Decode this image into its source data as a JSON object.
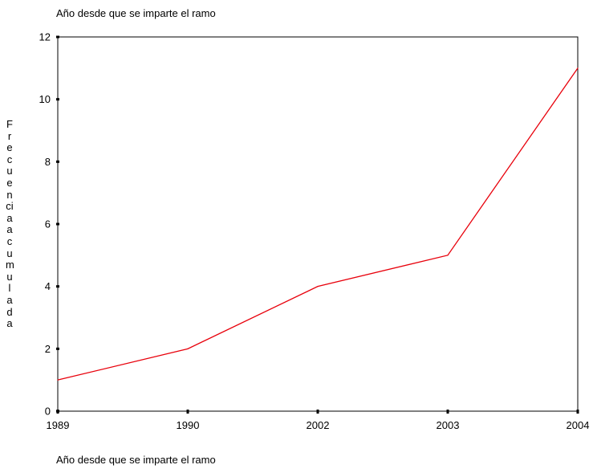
{
  "chart_data": {
    "type": "line",
    "title": "Año desde que se imparte el ramo",
    "xlabel": "Año desde que se imparte el ramo",
    "ylabel": "Frecuencia acumulada",
    "categories": [
      "1989",
      "1990",
      "2002",
      "2003",
      "2004"
    ],
    "series": [
      {
        "values": [
          1,
          2,
          4,
          5,
          11
        ],
        "color": "#e8000b"
      }
    ],
    "ylim": [
      0,
      12
    ],
    "yticks": [
      "0",
      "2",
      "4",
      "6",
      "8",
      "10",
      "12"
    ],
    "grid": false
  }
}
